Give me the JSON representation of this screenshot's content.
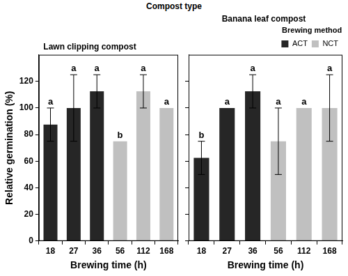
{
  "title": "Compost type",
  "chart_data": [
    {
      "type": "bar",
      "title": "Lawn clipping compost",
      "x_label": "Brewing time (h)",
      "y_label": "Relative germination (%)",
      "categories": [
        "18",
        "27",
        "36",
        "56",
        "112",
        "168"
      ],
      "series": [
        {
          "name": "ACT",
          "color": "#262626",
          "values": [
            87.5,
            100,
            112.5,
            null,
            null,
            null
          ],
          "errors": [
            12.5,
            25,
            12.5,
            null,
            null,
            null
          ],
          "letters": [
            "a",
            "a",
            "a",
            null,
            null,
            null
          ]
        },
        {
          "name": "NCT",
          "color": "#c0c0c0",
          "values": [
            null,
            null,
            null,
            75,
            112.5,
            100
          ],
          "errors": [
            null,
            null,
            null,
            null,
            12.5,
            null
          ],
          "letters": [
            null,
            null,
            null,
            "b",
            "a",
            "a"
          ]
        }
      ],
      "ylim": [
        0,
        140
      ],
      "yticks": [
        0,
        20,
        40,
        60,
        80,
        100,
        120
      ],
      "grid": false
    },
    {
      "type": "bar",
      "title": "Banana leaf compost",
      "x_label": "Brewing time (h)",
      "categories": [
        "18",
        "27",
        "36",
        "56",
        "112",
        "168"
      ],
      "series": [
        {
          "name": "ACT",
          "color": "#262626",
          "values": [
            62.5,
            100,
            112.5,
            null,
            null,
            null
          ],
          "errors": [
            12.5,
            null,
            12.5,
            null,
            null,
            null
          ],
          "letters": [
            "b",
            "a",
            "a",
            null,
            null,
            null
          ]
        },
        {
          "name": "NCT",
          "color": "#c0c0c0",
          "values": [
            null,
            null,
            null,
            75,
            100,
            100
          ],
          "errors": [
            null,
            null,
            null,
            25,
            null,
            25
          ],
          "letters": [
            null,
            null,
            null,
            "a",
            "a",
            "a"
          ]
        }
      ],
      "ylim": [
        0,
        140
      ],
      "yticks": [
        0,
        20,
        40,
        60,
        80,
        100,
        120
      ],
      "grid": false,
      "tick_labels": "x",
      "legend": "upper right",
      "legend_title": "Brewing method"
    }
  ]
}
